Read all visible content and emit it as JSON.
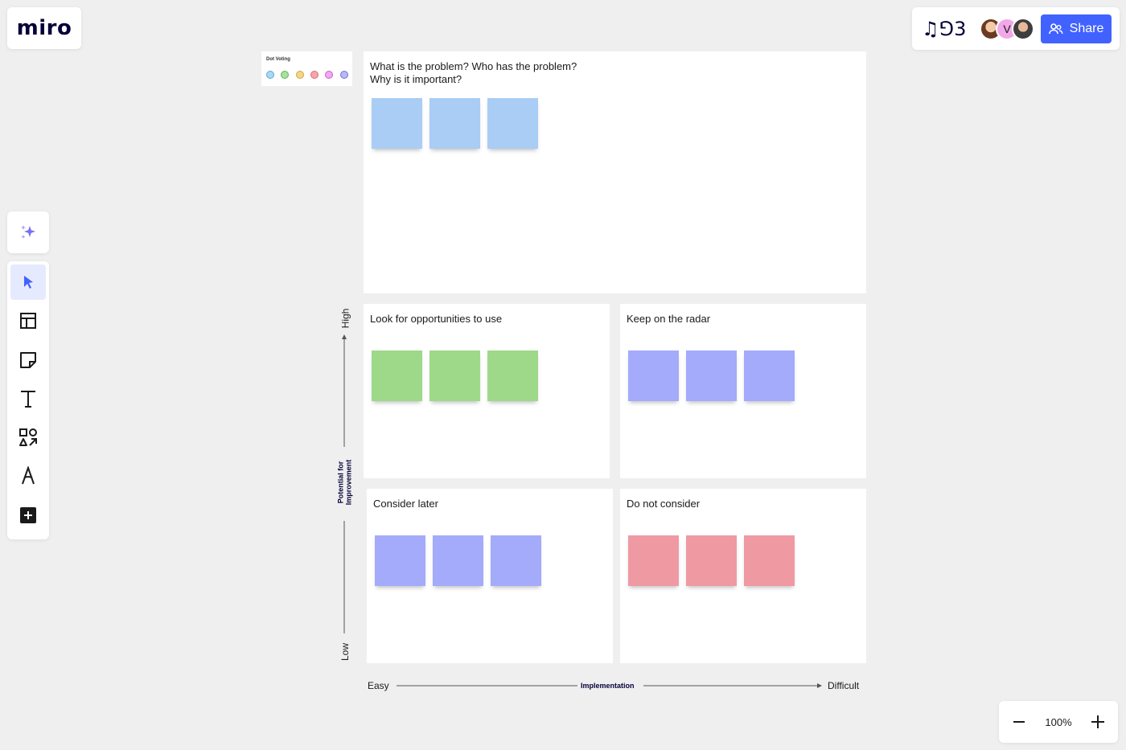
{
  "app": {
    "logo_text": "miro"
  },
  "header": {
    "board_glyph": "♫⅁3",
    "avatars": [
      {
        "name": "avatar-1",
        "initial": ""
      },
      {
        "name": "avatar-2",
        "initial": "V"
      },
      {
        "name": "avatar-3",
        "initial": ""
      }
    ],
    "share_label": "Share"
  },
  "toolbar": {
    "ai_icon": "sparkle-icon",
    "tools": [
      "select-icon",
      "templates-icon",
      "sticky-note-icon",
      "text-icon",
      "shapes-icon",
      "pen-icon",
      "add-icon"
    ]
  },
  "zoom": {
    "level": "100%"
  },
  "dot_voting": {
    "title": "Dot Voting",
    "dots": [
      "#a9d8f2",
      "#a8e0a0",
      "#f2d68a",
      "#f5a6ad",
      "#f0a8ef",
      "#b7b9f5"
    ],
    "dot_borders": [
      "#5aa8d6",
      "#5fb356",
      "#d0a641",
      "#de6a76",
      "#cc62c9",
      "#6f73d6"
    ]
  },
  "frames": {
    "problem": {
      "title": "What is the problem? Who has the problem?\nWhy is it important?",
      "sticky_color": "#a9cdf4"
    },
    "opportunities": {
      "title": "Look for opportunities to use",
      "sticky_color": "#9ed989"
    },
    "radar": {
      "title": "Keep on the radar",
      "sticky_color": "#a4abfb"
    },
    "later": {
      "title": "Consider later",
      "sticky_color": "#a4abfb"
    },
    "not": {
      "title": "Do not consider",
      "sticky_color": "#ef9aa3"
    }
  },
  "axes": {
    "y_high": "High",
    "y_low": "Low",
    "y_label": "Potential for Improvement",
    "x_easy": "Easy",
    "x_label": "Implementation",
    "x_difficult": "Difficult"
  }
}
